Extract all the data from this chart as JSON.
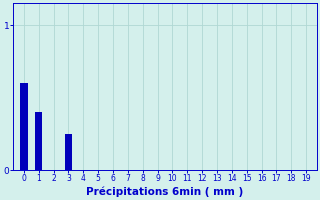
{
  "categories": [
    0,
    1,
    2,
    3,
    4,
    5,
    6,
    7,
    8,
    9,
    10,
    11,
    12,
    13,
    14,
    15,
    16,
    17,
    18,
    19
  ],
  "values": [
    0.6,
    0.4,
    0.0,
    0.25,
    0.0,
    0.0,
    0.0,
    0.0,
    0.0,
    0.0,
    0.0,
    0.0,
    0.0,
    0.0,
    0.0,
    0.0,
    0.0,
    0.0,
    0.0,
    0.0
  ],
  "bar_color": "#0000bb",
  "background_color": "#d4f0ec",
  "grid_color": "#b0d8d4",
  "axis_color": "#0000cc",
  "text_color": "#0000cc",
  "xlabel": "Précipitations 6min ( mm )",
  "xlabel_fontsize": 7.5,
  "ylim": [
    0,
    1.15
  ],
  "xlim": [
    -0.7,
    19.7
  ],
  "bar_width": 0.5,
  "tick_fontsize": 5.5,
  "ytick_fontsize": 6.5
}
